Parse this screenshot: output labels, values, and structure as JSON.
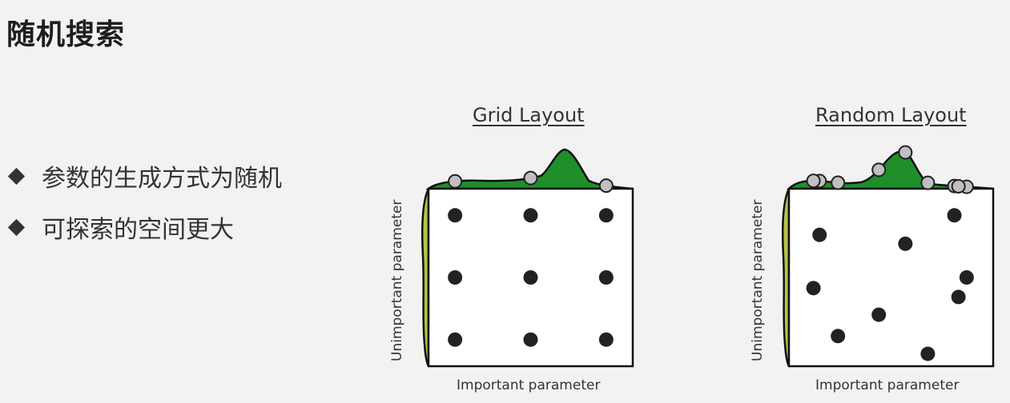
{
  "slide": {
    "title": "随机搜索",
    "bullets": [
      "参数的生成方式为随机",
      "可探索的空间更大"
    ]
  },
  "panels": [
    {
      "title": "Grid Layout",
      "xlabel": "Important parameter",
      "ylabel": "Unimportant parameter"
    },
    {
      "title": "Random Layout",
      "xlabel": "Important parameter",
      "ylabel": "Unimportant parameter"
    }
  ],
  "colors": {
    "important_density": "#1f8f2a",
    "unimportant_density": "#b7c24a",
    "point": "#222222",
    "marginal_point": "#c0c0c0"
  },
  "chart_data": [
    {
      "type": "scatter",
      "title": "Grid Layout",
      "xlabel": "Important parameter",
      "ylabel": "Unimportant parameter",
      "xlim": [
        0,
        1
      ],
      "ylim": [
        0,
        1
      ],
      "points": [
        {
          "x": 0.13,
          "y": 0.85
        },
        {
          "x": 0.5,
          "y": 0.85
        },
        {
          "x": 0.87,
          "y": 0.85
        },
        {
          "x": 0.13,
          "y": 0.5
        },
        {
          "x": 0.5,
          "y": 0.5
        },
        {
          "x": 0.87,
          "y": 0.5
        },
        {
          "x": 0.13,
          "y": 0.15
        },
        {
          "x": 0.5,
          "y": 0.15
        },
        {
          "x": 0.87,
          "y": 0.15
        }
      ]
    },
    {
      "type": "scatter",
      "title": "Random Layout",
      "xlabel": "Important parameter",
      "ylabel": "Unimportant parameter",
      "xlim": [
        0,
        1
      ],
      "ylim": [
        0,
        1
      ],
      "points": [
        {
          "x": 0.15,
          "y": 0.74
        },
        {
          "x": 0.57,
          "y": 0.69
        },
        {
          "x": 0.81,
          "y": 0.85
        },
        {
          "x": 0.12,
          "y": 0.44
        },
        {
          "x": 0.87,
          "y": 0.5
        },
        {
          "x": 0.83,
          "y": 0.39
        },
        {
          "x": 0.44,
          "y": 0.29
        },
        {
          "x": 0.24,
          "y": 0.17
        },
        {
          "x": 0.68,
          "y": 0.07
        }
      ]
    }
  ]
}
